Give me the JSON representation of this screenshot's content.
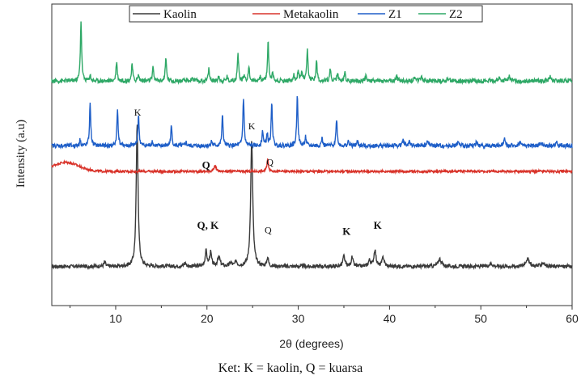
{
  "chart_data": {
    "type": "line",
    "xlabel": "2θ (degrees)",
    "ylabel": "Intensity (a.u)",
    "xlim": [
      3,
      60
    ],
    "x_ticks": [
      10,
      20,
      30,
      40,
      50,
      60
    ],
    "y_ticks_shown": false,
    "legend": {
      "position": "top-center",
      "frame": true
    },
    "series": [
      {
        "name": "Kaolin",
        "color": "#3a3a3a",
        "baseline": 0.13,
        "noise": 0.006,
        "peaks": [
          {
            "x": 8.8,
            "h": 0.015,
            "w": 0.15
          },
          {
            "x": 12.35,
            "h": 0.47,
            "w": 0.18
          },
          {
            "x": 17.6,
            "h": 0.012,
            "w": 0.2
          },
          {
            "x": 19.9,
            "h": 0.05,
            "w": 0.18
          },
          {
            "x": 20.4,
            "h": 0.045,
            "w": 0.18
          },
          {
            "x": 21.3,
            "h": 0.03,
            "w": 0.25
          },
          {
            "x": 22.6,
            "h": 0.012,
            "w": 0.2
          },
          {
            "x": 23.2,
            "h": 0.015,
            "w": 0.2
          },
          {
            "x": 24.9,
            "h": 0.42,
            "w": 0.2
          },
          {
            "x": 26.65,
            "h": 0.03,
            "w": 0.15
          },
          {
            "x": 35.0,
            "h": 0.035,
            "w": 0.18
          },
          {
            "x": 35.9,
            "h": 0.03,
            "w": 0.18
          },
          {
            "x": 37.8,
            "h": 0.02,
            "w": 0.2
          },
          {
            "x": 38.4,
            "h": 0.055,
            "w": 0.2
          },
          {
            "x": 39.3,
            "h": 0.03,
            "w": 0.2
          },
          {
            "x": 45.5,
            "h": 0.025,
            "w": 0.3
          },
          {
            "x": 51.1,
            "h": 0.01,
            "w": 0.3
          },
          {
            "x": 55.1,
            "h": 0.025,
            "w": 0.35
          },
          {
            "x": 56.8,
            "h": 0.012,
            "w": 0.3
          }
        ]
      },
      {
        "name": "Metakaolin",
        "color": "#d9342b",
        "baseline": 0.445,
        "noise": 0.004,
        "hump": {
          "x": 4.5,
          "h": 0.03,
          "w": 2.0
        },
        "peaks": [
          {
            "x": 20.9,
            "h": 0.018,
            "w": 0.2
          },
          {
            "x": 26.65,
            "h": 0.04,
            "w": 0.15
          }
        ]
      },
      {
        "name": "Z1",
        "color": "#1f5fc8",
        "baseline": 0.53,
        "noise": 0.007,
        "peaks": [
          {
            "x": 6.1,
            "h": 0.02,
            "w": 0.12
          },
          {
            "x": 7.2,
            "h": 0.14,
            "w": 0.12
          },
          {
            "x": 10.2,
            "h": 0.12,
            "w": 0.12
          },
          {
            "x": 12.5,
            "h": 0.1,
            "w": 0.12
          },
          {
            "x": 14.0,
            "h": 0.015,
            "w": 0.12
          },
          {
            "x": 16.1,
            "h": 0.065,
            "w": 0.12
          },
          {
            "x": 17.7,
            "h": 0.012,
            "w": 0.12
          },
          {
            "x": 20.5,
            "h": 0.015,
            "w": 0.12
          },
          {
            "x": 21.7,
            "h": 0.1,
            "w": 0.12
          },
          {
            "x": 24.0,
            "h": 0.16,
            "w": 0.12
          },
          {
            "x": 26.1,
            "h": 0.05,
            "w": 0.12
          },
          {
            "x": 26.6,
            "h": 0.04,
            "w": 0.12
          },
          {
            "x": 27.1,
            "h": 0.14,
            "w": 0.12
          },
          {
            "x": 29.9,
            "h": 0.17,
            "w": 0.12
          },
          {
            "x": 30.8,
            "h": 0.03,
            "w": 0.12
          },
          {
            "x": 32.6,
            "h": 0.025,
            "w": 0.12
          },
          {
            "x": 34.2,
            "h": 0.09,
            "w": 0.12
          },
          {
            "x": 35.5,
            "h": 0.015,
            "w": 0.12
          },
          {
            "x": 36.5,
            "h": 0.015,
            "w": 0.12
          },
          {
            "x": 41.5,
            "h": 0.018,
            "w": 0.15
          },
          {
            "x": 42.2,
            "h": 0.015,
            "w": 0.15
          },
          {
            "x": 44.2,
            "h": 0.018,
            "w": 0.15
          },
          {
            "x": 47.5,
            "h": 0.012,
            "w": 0.15
          },
          {
            "x": 49.5,
            "h": 0.012,
            "w": 0.15
          },
          {
            "x": 52.6,
            "h": 0.03,
            "w": 0.15
          },
          {
            "x": 54.3,
            "h": 0.012,
            "w": 0.15
          },
          {
            "x": 56.6,
            "h": 0.012,
            "w": 0.15
          },
          {
            "x": 58.3,
            "h": 0.012,
            "w": 0.15
          }
        ]
      },
      {
        "name": "Z2",
        "color": "#2ea866",
        "baseline": 0.745,
        "noise": 0.007,
        "peaks": [
          {
            "x": 6.2,
            "h": 0.2,
            "w": 0.12
          },
          {
            "x": 7.2,
            "h": 0.02,
            "w": 0.12
          },
          {
            "x": 10.1,
            "h": 0.065,
            "w": 0.12
          },
          {
            "x": 11.8,
            "h": 0.055,
            "w": 0.12
          },
          {
            "x": 12.5,
            "h": 0.02,
            "w": 0.12
          },
          {
            "x": 14.1,
            "h": 0.045,
            "w": 0.12
          },
          {
            "x": 15.5,
            "h": 0.075,
            "w": 0.12
          },
          {
            "x": 18.4,
            "h": 0.012,
            "w": 0.12
          },
          {
            "x": 20.2,
            "h": 0.04,
            "w": 0.12
          },
          {
            "x": 21.3,
            "h": 0.015,
            "w": 0.12
          },
          {
            "x": 22.2,
            "h": 0.015,
            "w": 0.12
          },
          {
            "x": 23.4,
            "h": 0.09,
            "w": 0.12
          },
          {
            "x": 24.1,
            "h": 0.02,
            "w": 0.12
          },
          {
            "x": 24.6,
            "h": 0.045,
            "w": 0.12
          },
          {
            "x": 25.8,
            "h": 0.015,
            "w": 0.12
          },
          {
            "x": 26.7,
            "h": 0.13,
            "w": 0.12
          },
          {
            "x": 27.2,
            "h": 0.025,
            "w": 0.12
          },
          {
            "x": 29.5,
            "h": 0.02,
            "w": 0.12
          },
          {
            "x": 30.0,
            "h": 0.035,
            "w": 0.12
          },
          {
            "x": 30.4,
            "h": 0.03,
            "w": 0.12
          },
          {
            "x": 31.0,
            "h": 0.1,
            "w": 0.12
          },
          {
            "x": 32.0,
            "h": 0.065,
            "w": 0.12
          },
          {
            "x": 33.5,
            "h": 0.04,
            "w": 0.12
          },
          {
            "x": 34.3,
            "h": 0.025,
            "w": 0.12
          },
          {
            "x": 35.1,
            "h": 0.03,
            "w": 0.12
          },
          {
            "x": 37.4,
            "h": 0.02,
            "w": 0.12
          },
          {
            "x": 40.8,
            "h": 0.015,
            "w": 0.15
          },
          {
            "x": 42.8,
            "h": 0.015,
            "w": 0.15
          },
          {
            "x": 43.5,
            "h": 0.015,
            "w": 0.15
          },
          {
            "x": 46.5,
            "h": 0.01,
            "w": 0.15
          },
          {
            "x": 52.0,
            "h": 0.01,
            "w": 0.15
          },
          {
            "x": 53.1,
            "h": 0.02,
            "w": 0.15
          },
          {
            "x": 57.6,
            "h": 0.015,
            "w": 0.15
          }
        ]
      }
    ],
    "annotations": [
      {
        "text": "K",
        "x": 12.4,
        "y": 0.63,
        "bold": false
      },
      {
        "text": "Q, K",
        "x": 20.1,
        "y": 0.255,
        "bold": true
      },
      {
        "text": "K",
        "x": 24.9,
        "y": 0.585,
        "bold": false
      },
      {
        "text": "Q",
        "x": 26.7,
        "y": 0.24,
        "bold": false
      },
      {
        "text": "K",
        "x": 35.3,
        "y": 0.235,
        "bold": true
      },
      {
        "text": "K",
        "x": 38.7,
        "y": 0.255,
        "bold": true
      },
      {
        "text": "Q",
        "x": 19.9,
        "y": 0.455,
        "bold": true
      },
      {
        "text": "Q",
        "x": 26.9,
        "y": 0.465,
        "bold": false
      }
    ]
  },
  "caption": "Ket: K = kaolin, Q = kuarsa"
}
